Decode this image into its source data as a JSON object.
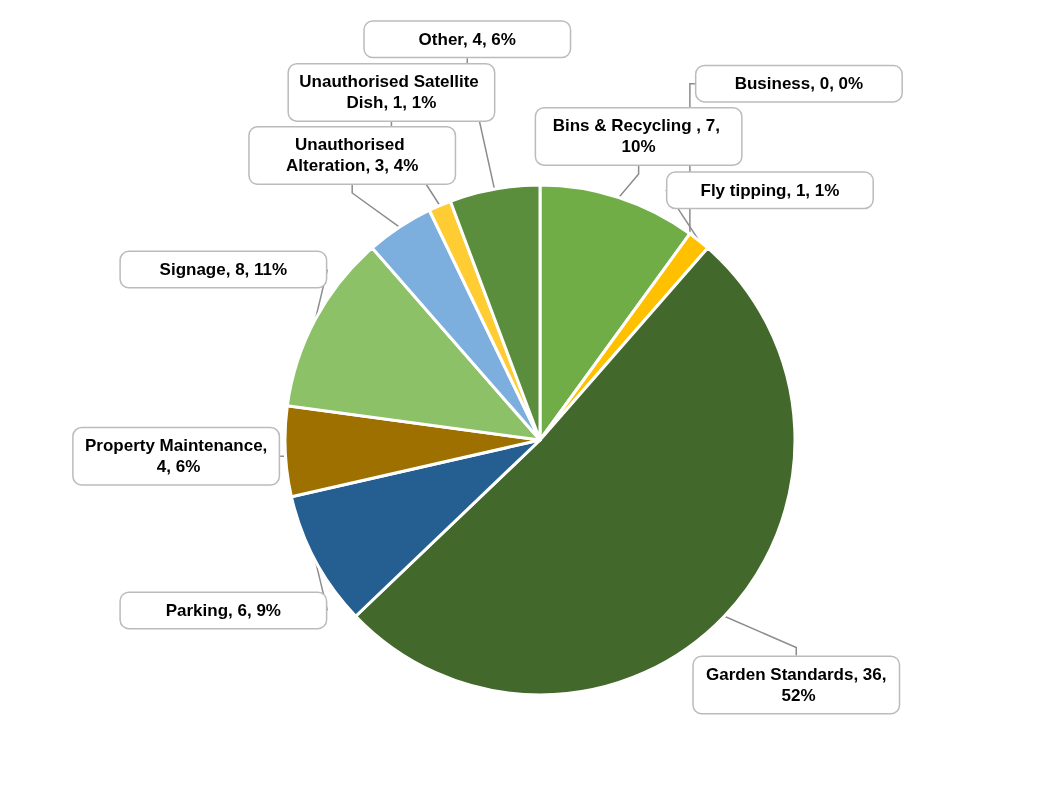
{
  "chart_data": {
    "type": "pie",
    "categories": [
      "Bins & Recycling ",
      "Business",
      "Fly tipping",
      "Garden Standards",
      "Parking",
      "Property Maintenance",
      "Signage",
      "Unauthorised Alteration",
      "Unauthorised Satellite Dish",
      "Other"
    ],
    "values": [
      7,
      0,
      1,
      36,
      6,
      4,
      8,
      3,
      1,
      4
    ],
    "value_labels": [
      ", 7, 10%",
      ", 0, 0%",
      ", 1, 1%",
      ", 36, 52%",
      ", 6, 9%",
      ", 4, 6%",
      ", 8, 11%",
      ", 3, 4%",
      ", 1, 1%",
      ", 4, 6%"
    ],
    "colors": [
      "#70ad47",
      "#ffc000",
      "#ffc000",
      "#43682b",
      "#255e91",
      "#9e7000",
      "#8cc168",
      "#7cafdd",
      "#ffcd33",
      "#5b8e3c"
    ]
  }
}
